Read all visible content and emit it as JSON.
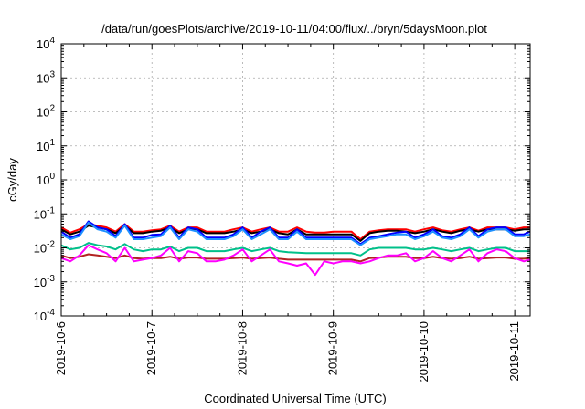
{
  "chart_data": {
    "type": "line",
    "title": "/data/run/goesPlots/archive/2019-10-11/04:00/flux/../bryn/5daysMoon.plot",
    "xlabel": "Coordinated Universal Time (UTC)",
    "ylabel": "cGy/day",
    "y_scale": "log",
    "ylim": [
      0.0001,
      10000
    ],
    "xlim": [
      0,
      5.17
    ],
    "x_unit": "days since 2019-10-06 00:00 UTC",
    "grid": true,
    "legend": "none",
    "yticks": [
      {
        "value": 0.0001,
        "base": "10",
        "exp": "-4"
      },
      {
        "value": 0.001,
        "base": "10",
        "exp": "-3"
      },
      {
        "value": 0.01,
        "base": "10",
        "exp": "-2"
      },
      {
        "value": 0.1,
        "base": "10",
        "exp": "-1"
      },
      {
        "value": 1,
        "base": "10",
        "exp": "0"
      },
      {
        "value": 10,
        "base": "10",
        "exp": "1"
      },
      {
        "value": 100,
        "base": "10",
        "exp": "2"
      },
      {
        "value": 1000,
        "base": "10",
        "exp": "3"
      },
      {
        "value": 10000,
        "base": "10",
        "exp": "4"
      }
    ],
    "xticks": [
      {
        "value": 0,
        "label": "2019-10-6"
      },
      {
        "value": 1,
        "label": "2019-10-7"
      },
      {
        "value": 2,
        "label": "2019-10-8"
      },
      {
        "value": 3,
        "label": "2019-10-9"
      },
      {
        "value": 4,
        "label": "2019-10-10"
      },
      {
        "value": 5,
        "label": "2019-10-11"
      }
    ],
    "x": [
      0.0,
      0.1,
      0.2,
      0.3,
      0.4,
      0.5,
      0.6,
      0.7,
      0.8,
      0.9,
      1.0,
      1.1,
      1.2,
      1.3,
      1.4,
      1.5,
      1.6,
      1.7,
      1.8,
      1.9,
      2.0,
      2.1,
      2.2,
      2.3,
      2.4,
      2.5,
      2.6,
      2.7,
      2.8,
      2.9,
      3.0,
      3.1,
      3.2,
      3.3,
      3.4,
      3.5,
      3.6,
      3.7,
      3.8,
      3.9,
      4.0,
      4.1,
      4.2,
      4.3,
      4.4,
      4.5,
      4.6,
      4.7,
      4.8,
      4.9,
      5.0,
      5.1,
      5.17
    ],
    "series": [
      {
        "color": "#ff0000",
        "values": [
          0.04,
          0.028,
          0.035,
          0.05,
          0.045,
          0.04,
          0.03,
          0.05,
          0.03,
          0.03,
          0.033,
          0.035,
          0.045,
          0.03,
          0.04,
          0.04,
          0.03,
          0.03,
          0.03,
          0.035,
          0.04,
          0.03,
          0.035,
          0.04,
          0.03,
          0.03,
          0.04,
          0.03,
          0.028,
          0.028,
          0.03,
          0.03,
          0.03,
          0.018,
          0.03,
          0.033,
          0.035,
          0.035,
          0.035,
          0.03,
          0.035,
          0.04,
          0.033,
          0.03,
          0.035,
          0.04,
          0.032,
          0.04,
          0.04,
          0.04,
          0.035,
          0.04,
          0.04
        ]
      },
      {
        "color": "#000000",
        "values": [
          0.035,
          0.025,
          0.03,
          0.045,
          0.04,
          0.035,
          0.027,
          0.045,
          0.027,
          0.027,
          0.03,
          0.032,
          0.04,
          0.027,
          0.035,
          0.035,
          0.027,
          0.027,
          0.027,
          0.03,
          0.035,
          0.027,
          0.03,
          0.035,
          0.027,
          0.025,
          0.035,
          0.025,
          0.025,
          0.025,
          0.025,
          0.025,
          0.025,
          0.016,
          0.027,
          0.03,
          0.032,
          0.032,
          0.03,
          0.027,
          0.03,
          0.035,
          0.03,
          0.027,
          0.032,
          0.035,
          0.03,
          0.035,
          0.035,
          0.035,
          0.032,
          0.035,
          0.035
        ]
      },
      {
        "color": "#0000ff",
        "values": [
          0.03,
          0.02,
          0.025,
          0.06,
          0.04,
          0.035,
          0.022,
          0.05,
          0.02,
          0.02,
          0.024,
          0.025,
          0.045,
          0.02,
          0.04,
          0.035,
          0.02,
          0.02,
          0.02,
          0.025,
          0.04,
          0.02,
          0.03,
          0.04,
          0.02,
          0.02,
          0.035,
          0.02,
          0.02,
          0.02,
          0.02,
          0.02,
          0.02,
          0.013,
          0.02,
          0.022,
          0.025,
          0.028,
          0.03,
          0.02,
          0.025,
          0.035,
          0.022,
          0.02,
          0.025,
          0.04,
          0.022,
          0.035,
          0.04,
          0.04,
          0.025,
          0.025,
          0.03
        ]
      },
      {
        "color": "#1e90ff",
        "values": [
          0.025,
          0.018,
          0.022,
          0.055,
          0.035,
          0.03,
          0.02,
          0.045,
          0.018,
          0.018,
          0.02,
          0.022,
          0.04,
          0.018,
          0.035,
          0.03,
          0.018,
          0.018,
          0.018,
          0.022,
          0.035,
          0.018,
          0.025,
          0.035,
          0.018,
          0.018,
          0.03,
          0.018,
          0.018,
          0.018,
          0.018,
          0.018,
          0.018,
          0.012,
          0.018,
          0.02,
          0.022,
          0.025,
          0.025,
          0.018,
          0.022,
          0.03,
          0.02,
          0.018,
          0.022,
          0.035,
          0.02,
          0.03,
          0.035,
          0.035,
          0.022,
          0.022,
          0.025
        ]
      },
      {
        "color": "#00c08a",
        "values": [
          0.012,
          0.009,
          0.01,
          0.014,
          0.012,
          0.011,
          0.009,
          0.013,
          0.009,
          0.008,
          0.009,
          0.009,
          0.011,
          0.008,
          0.01,
          0.01,
          0.008,
          0.008,
          0.008,
          0.009,
          0.01,
          0.008,
          0.009,
          0.01,
          0.008,
          0.0075,
          0.0072,
          0.007,
          0.007,
          0.007,
          0.007,
          0.007,
          0.007,
          0.006,
          0.009,
          0.01,
          0.01,
          0.01,
          0.01,
          0.009,
          0.009,
          0.01,
          0.009,
          0.008,
          0.009,
          0.01,
          0.008,
          0.009,
          0.01,
          0.01,
          0.008,
          0.008,
          0.008
        ]
      },
      {
        "color": "#b22222",
        "values": [
          0.006,
          0.005,
          0.0055,
          0.0065,
          0.006,
          0.0055,
          0.005,
          0.006,
          0.005,
          0.0048,
          0.005,
          0.005,
          0.0055,
          0.0048,
          0.0052,
          0.0052,
          0.0048,
          0.0048,
          0.0048,
          0.005,
          0.0052,
          0.0048,
          0.005,
          0.0052,
          0.0048,
          0.0045,
          0.0045,
          0.0045,
          0.0045,
          0.0045,
          0.0045,
          0.0045,
          0.0045,
          0.004,
          0.005,
          0.0052,
          0.0055,
          0.0055,
          0.0055,
          0.005,
          0.005,
          0.0055,
          0.005,
          0.0048,
          0.005,
          0.0055,
          0.0048,
          0.005,
          0.0052,
          0.0052,
          0.0048,
          0.0048,
          0.005
        ]
      },
      {
        "color": "#ff00ff",
        "values": [
          0.005,
          0.004,
          0.006,
          0.012,
          0.009,
          0.007,
          0.004,
          0.01,
          0.004,
          0.0045,
          0.005,
          0.006,
          0.01,
          0.004,
          0.008,
          0.007,
          0.004,
          0.004,
          0.0045,
          0.006,
          0.009,
          0.004,
          0.006,
          0.009,
          0.004,
          0.0035,
          0.003,
          0.0035,
          0.0016,
          0.004,
          0.0035,
          0.004,
          0.004,
          0.0035,
          0.004,
          0.005,
          0.006,
          0.006,
          0.007,
          0.004,
          0.005,
          0.008,
          0.005,
          0.004,
          0.006,
          0.009,
          0.004,
          0.007,
          0.009,
          0.008,
          0.005,
          0.004,
          0.0045
        ]
      }
    ]
  }
}
